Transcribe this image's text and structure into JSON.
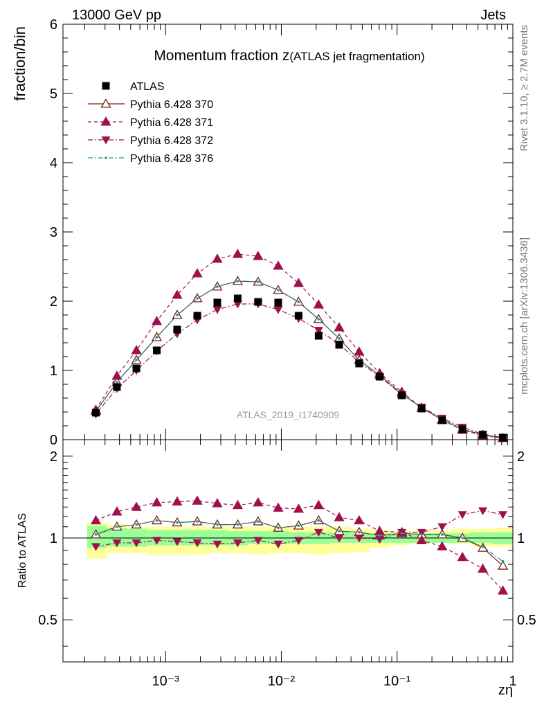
{
  "header": {
    "left": "13000 GeV pp",
    "right": "Jets"
  },
  "side_labels": {
    "rivet": "Rivet 3.1.10, ≥ 2.7M events",
    "mcplots": "mcplots.cern.ch [arXiv:1306.3436]"
  },
  "main_panel": {
    "title_main": "Momentum fraction z",
    "title_sub": "(ATLAS jet fragmentation)",
    "ylabel": "fraction/bin",
    "watermark": "ATLAS_2019_I1740909",
    "y_ticks": [
      "0",
      "1",
      "2",
      "3",
      "4",
      "5",
      "6"
    ]
  },
  "ratio_panel": {
    "ylabel": "Ratio to ATLAS",
    "y_ticks": [
      "0.5",
      "1",
      "2"
    ]
  },
  "x_axis": {
    "label": "zη",
    "tick_labels": [
      "10⁻³",
      "10⁻²",
      "10⁻¹",
      "1"
    ]
  },
  "legend": [
    {
      "label": "ATLAS",
      "color": "#000000",
      "marker": "square",
      "line": "none"
    },
    {
      "label": "Pythia 6.428 370",
      "color": "#7a1a1a",
      "marker": "open-triangle-up",
      "line": "solid"
    },
    {
      "label": "Pythia 6.428 371",
      "color": "#a0104e",
      "marker": "triangle-up",
      "line": "dashed"
    },
    {
      "label": "Pythia 6.428 372",
      "color": "#a0104e",
      "marker": "triangle-down",
      "line": "dashdot"
    },
    {
      "label": "Pythia 6.428 376",
      "color": "#1a9a8a",
      "marker": "dot",
      "line": "dashdot"
    }
  ],
  "chart_data": {
    "type": "line",
    "x_scale": "log",
    "xlim": [
      0.00013,
      1.0
    ],
    "ylim": [
      0,
      6
    ],
    "ratio_ylim": [
      0.35,
      2.3
    ],
    "x": [
      0.00025,
      0.00038,
      0.00056,
      0.00084,
      0.00126,
      0.00188,
      0.0028,
      0.0042,
      0.0063,
      0.0094,
      0.0141,
      0.021,
      0.0316,
      0.047,
      0.0707,
      0.11,
      0.163,
      0.245,
      0.367,
      0.55,
      0.82
    ],
    "band_ranges": [
      0.00021,
      0.00031,
      0.00046,
      0.00069,
      0.00104,
      0.00156,
      0.00232,
      0.00347,
      0.0052,
      0.0078,
      0.0116,
      0.0174,
      0.026,
      0.0388,
      0.058,
      0.087,
      0.13,
      0.195,
      0.29,
      0.435,
      0.65,
      1.0
    ],
    "data_uncertainty": {
      "stat_low": [
        0.92,
        0.93,
        0.93,
        0.94,
        0.94,
        0.94,
        0.94,
        0.94,
        0.95,
        0.95,
        0.95,
        0.95,
        0.96,
        0.96,
        0.96,
        0.96,
        0.96,
        0.96,
        0.96,
        0.96,
        0.95
      ],
      "stat_high": [
        1.11,
        1.09,
        1.08,
        1.07,
        1.07,
        1.07,
        1.07,
        1.06,
        1.06,
        1.06,
        1.05,
        1.05,
        1.05,
        1.04,
        1.04,
        1.04,
        1.04,
        1.04,
        1.04,
        1.05,
        1.05
      ],
      "syst_low": [
        0.84,
        0.88,
        0.88,
        0.87,
        0.87,
        0.87,
        0.88,
        0.88,
        0.87,
        0.88,
        0.88,
        0.87,
        0.88,
        0.89,
        0.92,
        0.94,
        0.95,
        0.96,
        0.95,
        0.93,
        0.93
      ],
      "syst_high": [
        1.14,
        1.12,
        1.1,
        1.1,
        1.1,
        1.1,
        1.1,
        1.1,
        1.1,
        1.1,
        1.1,
        1.1,
        1.1,
        1.08,
        1.07,
        1.06,
        1.06,
        1.06,
        1.08,
        1.08,
        1.09
      ]
    },
    "series": [
      {
        "name": "ATLAS",
        "values": [
          0.39,
          0.76,
          1.03,
          1.29,
          1.59,
          1.79,
          1.98,
          2.04,
          1.99,
          1.98,
          1.79,
          1.5,
          1.37,
          1.1,
          0.91,
          0.64,
          0.45,
          0.28,
          0.15,
          0.07,
          0.03
        ]
      },
      {
        "name": "Pythia 6.428 370",
        "values": [
          0.41,
          0.83,
          1.15,
          1.48,
          1.8,
          2.04,
          2.21,
          2.29,
          2.28,
          2.16,
          1.99,
          1.74,
          1.46,
          1.15,
          0.93,
          0.66,
          0.46,
          0.29,
          0.15,
          0.07,
          0.02
        ],
        "ratio": [
          1.03,
          1.1,
          1.12,
          1.16,
          1.14,
          1.15,
          1.12,
          1.12,
          1.15,
          1.09,
          1.11,
          1.16,
          1.06,
          1.05,
          1.02,
          1.04,
          1.03,
          1.03,
          1.0,
          0.92,
          0.79
        ]
      },
      {
        "name": "Pythia 6.428 371",
        "values": [
          0.43,
          0.92,
          1.29,
          1.71,
          2.09,
          2.4,
          2.61,
          2.68,
          2.65,
          2.51,
          2.26,
          1.95,
          1.62,
          1.27,
          0.96,
          0.69,
          0.46,
          0.28,
          0.14,
          0.06,
          0.02
        ],
        "ratio": [
          1.16,
          1.25,
          1.3,
          1.35,
          1.36,
          1.37,
          1.34,
          1.32,
          1.35,
          1.29,
          1.28,
          1.32,
          1.19,
          1.16,
          1.06,
          1.05,
          0.98,
          0.93,
          0.85,
          0.77,
          0.64
        ]
      },
      {
        "name": "Pythia 6.428 372",
        "values": [
          0.37,
          0.74,
          1.0,
          1.28,
          1.53,
          1.73,
          1.88,
          1.96,
          1.96,
          1.88,
          1.75,
          1.58,
          1.38,
          1.12,
          0.91,
          0.65,
          0.47,
          0.31,
          0.18,
          0.08,
          0.03
        ],
        "ratio": [
          0.93,
          0.96,
          0.96,
          0.98,
          0.97,
          0.96,
          0.95,
          0.96,
          0.98,
          0.95,
          0.98,
          1.05,
          1.0,
          1.0,
          0.99,
          1.05,
          1.05,
          1.1,
          1.22,
          1.26,
          1.22
        ]
      },
      {
        "name": "Pythia 6.428 376",
        "values": [
          0.41,
          0.83,
          1.15,
          1.48,
          1.8,
          2.04,
          2.21,
          2.29,
          2.28,
          2.16,
          1.99,
          1.74,
          1.46,
          1.15,
          0.93,
          0.66,
          0.46,
          0.29,
          0.15,
          0.07,
          0.02
        ],
        "ratio": [
          1.03,
          1.1,
          1.12,
          1.16,
          1.14,
          1.15,
          1.12,
          1.12,
          1.15,
          1.09,
          1.11,
          1.16,
          1.06,
          1.05,
          1.02,
          1.04,
          1.03,
          1.03,
          1.0,
          0.93,
          0.82
        ]
      }
    ]
  }
}
